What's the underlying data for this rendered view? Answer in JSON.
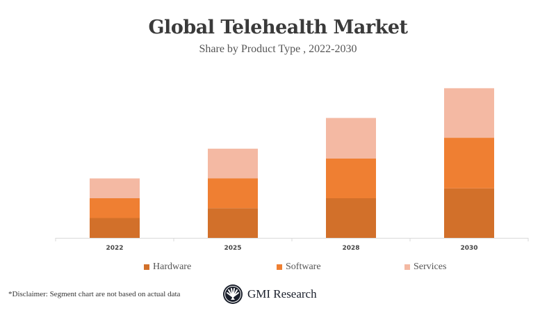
{
  "chart_data": {
    "type": "bar",
    "stacked": true,
    "title": "Global Telehealth Market",
    "subtitle": "Share by Product Type , 2022-2030",
    "categories": [
      "2022",
      "2025",
      "2028",
      "2030"
    ],
    "series": [
      {
        "name": "Hardware",
        "values": [
          2,
          3,
          4,
          5
        ],
        "color": "#D2702A"
      },
      {
        "name": "Software",
        "values": [
          2,
          3,
          4,
          5.1
        ],
        "color": "#EF7F32"
      },
      {
        "name": "Services",
        "values": [
          2,
          3,
          4.1,
          5
        ],
        "color": "#F4B9A3"
      }
    ],
    "xlabel": "",
    "ylabel": "",
    "y_axis_shown": false,
    "grid": false,
    "legend_position": "bottom"
  },
  "footer": {
    "disclaimer": "*Disclaimer:  Segment chart are not based on actual data",
    "logo_text": "GMI Research"
  }
}
